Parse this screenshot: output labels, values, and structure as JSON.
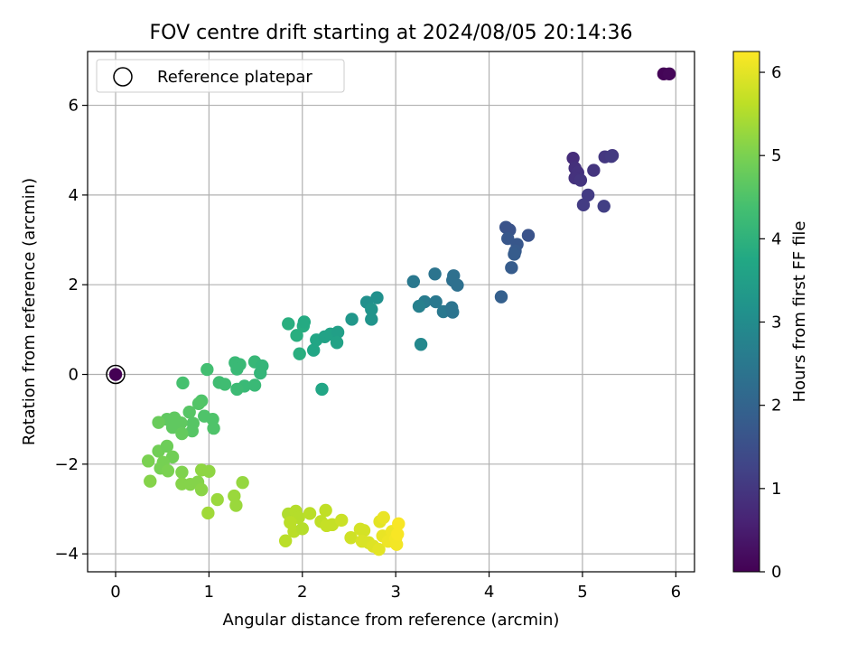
{
  "chart_data": {
    "type": "scatter",
    "title": "FOV centre drift starting at 2024/08/05 20:14:36",
    "xlabel": "Angular distance from reference (arcmin)",
    "ylabel": "Rotation from reference (arcmin)",
    "xlim": [
      -0.3,
      6.2
    ],
    "ylim": [
      -4.4,
      7.2
    ],
    "xticks": [
      0,
      1,
      2,
      3,
      4,
      5,
      6
    ],
    "yticks": [
      -4,
      -2,
      0,
      2,
      4,
      6
    ],
    "grid": true,
    "legend": {
      "position": "top-left",
      "entries": [
        "Reference platepar"
      ]
    },
    "colorbar": {
      "label": "Hours from first FF file",
      "min": 0,
      "max": 6.25,
      "ticks": [
        0,
        1,
        2,
        3,
        4,
        5,
        6
      ],
      "colormap": "viridis"
    },
    "reference_point": {
      "x": 0,
      "y": 0
    },
    "points": [
      {
        "x": 5.87,
        "y": 6.7,
        "h": 0.05
      },
      {
        "x": 5.93,
        "y": 6.7,
        "h": 0.1
      },
      {
        "x": 4.9,
        "y": 4.82,
        "h": 0.8
      },
      {
        "x": 4.92,
        "y": 4.6,
        "h": 0.85
      },
      {
        "x": 4.95,
        "y": 4.5,
        "h": 0.9
      },
      {
        "x": 4.92,
        "y": 4.38,
        "h": 0.9
      },
      {
        "x": 4.98,
        "y": 4.33,
        "h": 0.95
      },
      {
        "x": 5.12,
        "y": 4.55,
        "h": 0.95
      },
      {
        "x": 5.24,
        "y": 4.85,
        "h": 1.0
      },
      {
        "x": 5.32,
        "y": 4.88,
        "h": 1.0
      },
      {
        "x": 5.31,
        "y": 4.86,
        "h": 1.05
      },
      {
        "x": 5.06,
        "y": 4.0,
        "h": 1.1
      },
      {
        "x": 5.01,
        "y": 3.78,
        "h": 1.1
      },
      {
        "x": 5.23,
        "y": 3.75,
        "h": 1.15
      },
      {
        "x": 4.18,
        "y": 3.28,
        "h": 1.6
      },
      {
        "x": 4.22,
        "y": 3.22,
        "h": 1.6
      },
      {
        "x": 4.2,
        "y": 3.03,
        "h": 1.7
      },
      {
        "x": 4.3,
        "y": 2.9,
        "h": 1.7
      },
      {
        "x": 4.28,
        "y": 2.75,
        "h": 1.75
      },
      {
        "x": 4.27,
        "y": 2.68,
        "h": 1.8
      },
      {
        "x": 4.42,
        "y": 3.1,
        "h": 1.6
      },
      {
        "x": 4.24,
        "y": 2.38,
        "h": 1.8
      },
      {
        "x": 4.13,
        "y": 1.73,
        "h": 1.9
      },
      {
        "x": 3.19,
        "y": 2.07,
        "h": 2.5
      },
      {
        "x": 3.42,
        "y": 2.24,
        "h": 2.4
      },
      {
        "x": 3.62,
        "y": 2.2,
        "h": 2.3
      },
      {
        "x": 3.61,
        "y": 2.1,
        "h": 2.3
      },
      {
        "x": 3.66,
        "y": 1.99,
        "h": 2.3
      },
      {
        "x": 3.31,
        "y": 1.62,
        "h": 2.6
      },
      {
        "x": 3.25,
        "y": 1.52,
        "h": 2.7
      },
      {
        "x": 3.43,
        "y": 1.62,
        "h": 2.5
      },
      {
        "x": 3.51,
        "y": 1.4,
        "h": 2.5
      },
      {
        "x": 3.6,
        "y": 1.49,
        "h": 2.4
      },
      {
        "x": 3.61,
        "y": 1.39,
        "h": 2.4
      },
      {
        "x": 3.27,
        "y": 0.67,
        "h": 2.9
      },
      {
        "x": 2.69,
        "y": 1.61,
        "h": 3.1
      },
      {
        "x": 2.8,
        "y": 1.71,
        "h": 3.1
      },
      {
        "x": 2.74,
        "y": 1.45,
        "h": 3.2
      },
      {
        "x": 2.74,
        "y": 1.23,
        "h": 3.2
      },
      {
        "x": 2.53,
        "y": 1.23,
        "h": 3.3
      },
      {
        "x": 1.85,
        "y": 1.13,
        "h": 3.9
      },
      {
        "x": 2.01,
        "y": 1.08,
        "h": 3.85
      },
      {
        "x": 2.02,
        "y": 1.17,
        "h": 3.8
      },
      {
        "x": 1.94,
        "y": 0.87,
        "h": 3.9
      },
      {
        "x": 1.97,
        "y": 0.46,
        "h": 3.9
      },
      {
        "x": 2.15,
        "y": 0.77,
        "h": 3.7
      },
      {
        "x": 2.24,
        "y": 0.84,
        "h": 3.6
      },
      {
        "x": 2.3,
        "y": 0.9,
        "h": 3.6
      },
      {
        "x": 2.38,
        "y": 0.94,
        "h": 3.5
      },
      {
        "x": 2.37,
        "y": 0.71,
        "h": 3.6
      },
      {
        "x": 2.12,
        "y": 0.54,
        "h": 3.7
      },
      {
        "x": 2.21,
        "y": -0.33,
        "h": 3.7
      },
      {
        "x": 1.28,
        "y": 0.26,
        "h": 4.2
      },
      {
        "x": 1.33,
        "y": 0.22,
        "h": 4.2
      },
      {
        "x": 1.49,
        "y": 0.28,
        "h": 4.15
      },
      {
        "x": 1.57,
        "y": 0.19,
        "h": 4.1
      },
      {
        "x": 1.55,
        "y": 0.03,
        "h": 4.1
      },
      {
        "x": 1.3,
        "y": 0.12,
        "h": 4.2
      },
      {
        "x": 1.11,
        "y": -0.18,
        "h": 4.3
      },
      {
        "x": 1.17,
        "y": -0.22,
        "h": 4.3
      },
      {
        "x": 1.38,
        "y": -0.26,
        "h": 4.2
      },
      {
        "x": 1.49,
        "y": -0.24,
        "h": 4.2
      },
      {
        "x": 1.3,
        "y": -0.33,
        "h": 4.25
      },
      {
        "x": 0.98,
        "y": 0.11,
        "h": 4.35
      },
      {
        "x": 0.72,
        "y": -0.19,
        "h": 4.4
      },
      {
        "x": 0.92,
        "y": -0.59,
        "h": 4.5
      },
      {
        "x": 0.89,
        "y": -0.65,
        "h": 4.55
      },
      {
        "x": 0.79,
        "y": -0.84,
        "h": 4.6
      },
      {
        "x": 0.95,
        "y": -0.93,
        "h": 4.5
      },
      {
        "x": 1.04,
        "y": -1.0,
        "h": 4.5
      },
      {
        "x": 1.05,
        "y": -1.2,
        "h": 4.5
      },
      {
        "x": 0.83,
        "y": -1.09,
        "h": 4.6
      },
      {
        "x": 0.82,
        "y": -1.26,
        "h": 4.6
      },
      {
        "x": 0.55,
        "y": -1.0,
        "h": 4.7
      },
      {
        "x": 0.63,
        "y": -0.97,
        "h": 4.7
      },
      {
        "x": 0.7,
        "y": -1.08,
        "h": 4.7
      },
      {
        "x": 0.61,
        "y": -1.18,
        "h": 4.7
      },
      {
        "x": 0.71,
        "y": -1.32,
        "h": 4.75
      },
      {
        "x": 0.46,
        "y": -1.07,
        "h": 4.8
      },
      {
        "x": 0.46,
        "y": -1.71,
        "h": 4.9
      },
      {
        "x": 0.55,
        "y": -1.6,
        "h": 4.85
      },
      {
        "x": 0.61,
        "y": -1.84,
        "h": 4.9
      },
      {
        "x": 0.51,
        "y": -1.96,
        "h": 4.95
      },
      {
        "x": 0.48,
        "y": -2.09,
        "h": 4.95
      },
      {
        "x": 0.35,
        "y": -1.93,
        "h": 5.0
      },
      {
        "x": 0.56,
        "y": -2.15,
        "h": 5.0
      },
      {
        "x": 0.71,
        "y": -2.18,
        "h": 5.05
      },
      {
        "x": 0.37,
        "y": -2.38,
        "h": 5.1
      },
      {
        "x": 0.71,
        "y": -2.44,
        "h": 5.1
      },
      {
        "x": 0.8,
        "y": -2.45,
        "h": 5.1
      },
      {
        "x": 0.88,
        "y": -2.4,
        "h": 5.1
      },
      {
        "x": 0.92,
        "y": -2.57,
        "h": 5.15
      },
      {
        "x": 0.92,
        "y": -2.13,
        "h": 5.2
      },
      {
        "x": 1.0,
        "y": -2.16,
        "h": 5.2
      },
      {
        "x": 1.36,
        "y": -2.41,
        "h": 5.25
      },
      {
        "x": 1.27,
        "y": -2.71,
        "h": 5.3
      },
      {
        "x": 1.29,
        "y": -2.92,
        "h": 5.3
      },
      {
        "x": 1.09,
        "y": -2.79,
        "h": 5.3
      },
      {
        "x": 0.99,
        "y": -3.09,
        "h": 5.35
      },
      {
        "x": 1.85,
        "y": -3.11,
        "h": 5.5
      },
      {
        "x": 1.93,
        "y": -3.05,
        "h": 5.55
      },
      {
        "x": 1.96,
        "y": -3.19,
        "h": 5.55
      },
      {
        "x": 1.87,
        "y": -3.3,
        "h": 5.6
      },
      {
        "x": 1.91,
        "y": -3.5,
        "h": 5.6
      },
      {
        "x": 2.0,
        "y": -3.44,
        "h": 5.55
      },
      {
        "x": 1.82,
        "y": -3.71,
        "h": 5.6
      },
      {
        "x": 2.08,
        "y": -3.1,
        "h": 5.6
      },
      {
        "x": 2.2,
        "y": -3.28,
        "h": 5.65
      },
      {
        "x": 2.25,
        "y": -3.03,
        "h": 5.65
      },
      {
        "x": 2.26,
        "y": -3.37,
        "h": 5.7
      },
      {
        "x": 2.32,
        "y": -3.35,
        "h": 5.7
      },
      {
        "x": 2.42,
        "y": -3.25,
        "h": 5.75
      },
      {
        "x": 2.52,
        "y": -3.64,
        "h": 5.8
      },
      {
        "x": 2.62,
        "y": -3.45,
        "h": 5.85
      },
      {
        "x": 2.66,
        "y": -3.48,
        "h": 5.85
      },
      {
        "x": 2.64,
        "y": -3.72,
        "h": 5.9
      },
      {
        "x": 2.71,
        "y": -3.75,
        "h": 5.9
      },
      {
        "x": 2.76,
        "y": -3.83,
        "h": 5.95
      },
      {
        "x": 2.82,
        "y": -3.9,
        "h": 6.0
      },
      {
        "x": 2.83,
        "y": -3.28,
        "h": 6.0
      },
      {
        "x": 2.87,
        "y": -3.19,
        "h": 6.05
      },
      {
        "x": 2.86,
        "y": -3.6,
        "h": 6.05
      },
      {
        "x": 2.92,
        "y": -3.72,
        "h": 6.1
      },
      {
        "x": 2.96,
        "y": -3.5,
        "h": 6.1
      },
      {
        "x": 3.0,
        "y": -3.66,
        "h": 6.15
      },
      {
        "x": 3.01,
        "y": -3.79,
        "h": 6.15
      },
      {
        "x": 3.03,
        "y": -3.33,
        "h": 6.2
      },
      {
        "x": 3.02,
        "y": -3.56,
        "h": 6.2
      }
    ]
  }
}
